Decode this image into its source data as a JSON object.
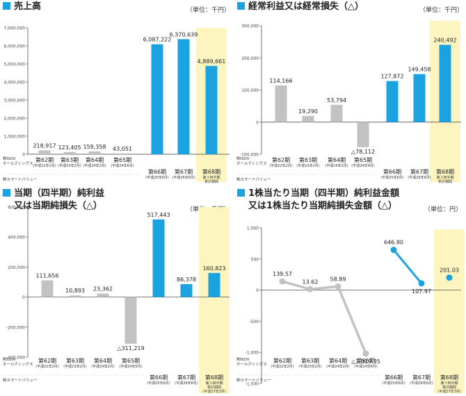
{
  "chart_data": [
    {
      "id": "sales",
      "type": "bar",
      "title": "売上高",
      "title_line2": "",
      "unit": "（単位：千円）",
      "ylim": [
        0,
        7000000
      ],
      "ticks": [
        0,
        1000000,
        2000000,
        3000000,
        4000000,
        5000000,
        6000000,
        7000000
      ],
      "tick_labels": [
        "0",
        "1,000,000",
        "2,000,000",
        "3,000,000",
        "4,000,000",
        "5,000,000",
        "6,000,000",
        "7,000,000"
      ],
      "categories": [
        "第62期",
        "第63期",
        "第64期",
        "第65期",
        "第66期",
        "第67期",
        "第68期"
      ],
      "category_sub": [
        "(平成22年2月)",
        "(平成23年2月)",
        "(平成24年2月)",
        "(平成24年6月)",
        "(平成25年6月)",
        "(平成26年6月)",
        "第３四半期\n累計期間"
      ],
      "values": [
        218917,
        123405,
        159358,
        43051,
        6087222,
        6370639,
        4889661
      ],
      "value_labels": [
        "218,917",
        "123,405",
        "159,358",
        "43,051",
        "6,087,222",
        "6,370,639",
        "4,889,661"
      ],
      "company_a": "㈱ISDV\nホールディングス",
      "company_b": "㈱スマートバリュー"
    },
    {
      "id": "ordinary",
      "type": "bar",
      "title": "経常利益又は経常損失（△）",
      "title_line2": "",
      "unit": "（単位：千円）",
      "ylim": [
        -100000,
        300000
      ],
      "ticks": [
        -100000,
        0,
        100000,
        200000,
        300000
      ],
      "tick_labels": [
        "-100,000",
        "0",
        "100,000",
        "200,000",
        "300,000"
      ],
      "categories": [
        "第62期",
        "第63期",
        "第64期",
        "第65期",
        "第66期",
        "第67期",
        "第68期"
      ],
      "category_sub": [
        "(平成22年2月)",
        "(平成23年2月)",
        "(平成24年2月)",
        "(平成24年6月)",
        "(平成25年6月)",
        "(平成26年6月)",
        "第３四半期\n累計期間"
      ],
      "values": [
        114166,
        19290,
        53794,
        -78112,
        127872,
        149458,
        240492
      ],
      "value_labels": [
        "114,166",
        "19,290",
        "53,794",
        "△78,112",
        "127,872",
        "149,458",
        "240,492"
      ],
      "company_a": "㈱ISDV\nホールディングス",
      "company_b": "㈱スマートバリュー"
    },
    {
      "id": "netincome",
      "type": "bar",
      "title": "当期（四半期）純利益",
      "title_line2": "又は当期純損失（△）",
      "unit": "（単位：千円）",
      "ylim": [
        -400000,
        600000
      ],
      "ticks": [
        -400000,
        -200000,
        0,
        200000,
        400000,
        600000
      ],
      "tick_labels": [
        "-400,000",
        "-200,000",
        "0",
        "200,000",
        "400,000",
        "600,000"
      ],
      "categories": [
        "第62期",
        "第63期",
        "第64期",
        "第65期",
        "第66期",
        "第67期",
        "第68期"
      ],
      "category_sub": [
        "(平成22年2月)",
        "(平成23年2月)",
        "(平成24年2月)",
        "(平成24年6月)",
        "(平成25年6月)",
        "(平成26年6月)",
        "第３四半期\n累計期間\n(平成27年3月)"
      ],
      "values": [
        111656,
        10893,
        23362,
        -311219,
        517443,
        86378,
        160823
      ],
      "value_labels": [
        "111,656",
        "10,893",
        "23,362",
        "△311,219",
        "517,443",
        "86,378",
        "160,823"
      ],
      "company_a": "㈱ISDV\nホールディングス",
      "company_b": "㈱スマートバリュー"
    },
    {
      "id": "eps",
      "type": "line",
      "title": "1株当たり当期（四半期）純利益金額",
      "title_line2": "又は1株当たり当期純損失金額（△）",
      "unit": "（単位：円）",
      "ylim": [
        -1500,
        1000
      ],
      "ticks": [
        -1500,
        -1000,
        -500,
        0,
        500,
        1000
      ],
      "tick_labels": [
        "-1,500",
        "-1,000",
        "-500",
        "0",
        "500",
        "1,000"
      ],
      "categories": [
        "第62期",
        "第63期",
        "第64期",
        "第65期",
        "第66期",
        "第67期",
        "第68期"
      ],
      "category_sub": [
        "(平成22年2月)",
        "(平成23年2月)",
        "(平成24年2月)",
        "(平成24年6月)",
        "(平成25年6月)",
        "(平成26年6月)",
        "第３四半期\n累計期間\n(平成27年3月)"
      ],
      "values": [
        139.57,
        13.62,
        58.89,
        -1019.35,
        646.8,
        107.97,
        201.03
      ],
      "value_labels": [
        "139.57",
        "13.62",
        "58.89",
        "△1,019.35",
        "646.80",
        "107.97",
        "201.03"
      ],
      "company_a": "㈱ISDV\nホールディングス",
      "company_b": "㈱スマートバリュー"
    }
  ],
  "colors": {
    "gray": "#c2c2c2",
    "blue": "#1aa3e0",
    "highlight": "#fcf5c0",
    "axis": "#666666",
    "grid": "#d8d8d8"
  }
}
